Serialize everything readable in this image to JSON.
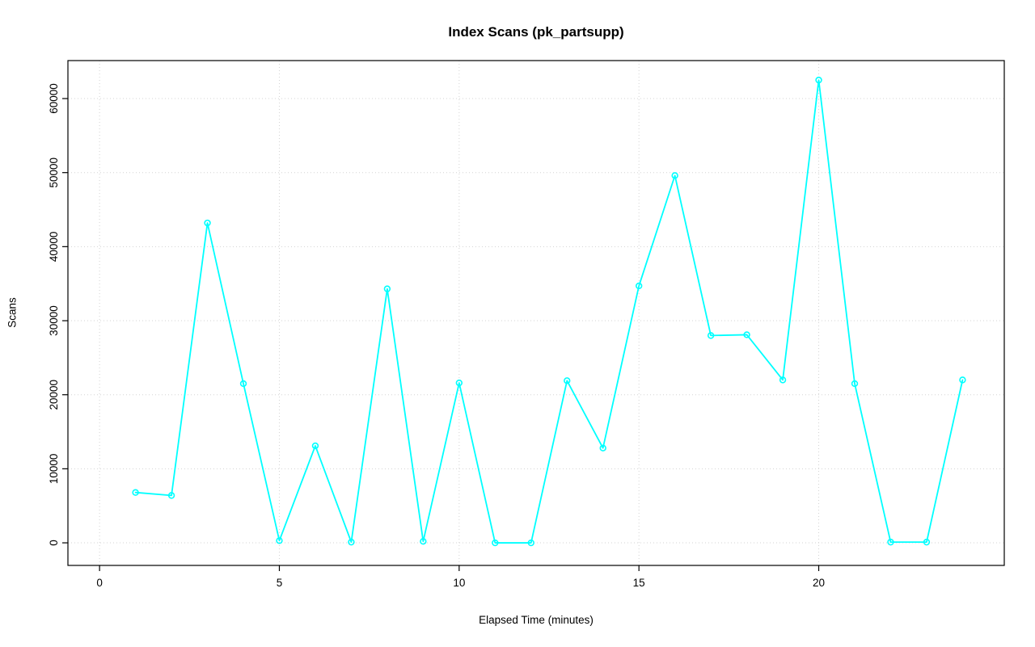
{
  "page": {
    "background": "#ffffff"
  },
  "chart_data": {
    "type": "line",
    "title": "Index Scans (pk_partsupp)",
    "xlabel": "Elapsed Time (minutes)",
    "ylabel": "Scans",
    "x": [
      1,
      2,
      3,
      4,
      5,
      6,
      7,
      8,
      9,
      10,
      11,
      12,
      13,
      14,
      15,
      16,
      17,
      18,
      19,
      20,
      21,
      22,
      23,
      24
    ],
    "series": [
      {
        "name": "pk_partsupp index scans",
        "marker": "open-circle",
        "color": "#00ffff",
        "values": [
          6800,
          6400,
          43200,
          21500,
          300,
          13100,
          100,
          34300,
          200,
          21600,
          0,
          0,
          21900,
          12800,
          34700,
          49600,
          28000,
          28100,
          22000,
          62500,
          21500,
          100,
          100,
          22000
        ]
      }
    ],
    "xticks": [
      0,
      5,
      10,
      15,
      20
    ],
    "yticks": [
      0,
      10000,
      20000,
      30000,
      40000,
      50000,
      60000
    ],
    "xlim": [
      -0.88,
      25.16
    ],
    "ylim": [
      -3050,
      65130
    ],
    "grid": true,
    "grid_style": "dotted",
    "grid_color": "#d3d3d3",
    "axis_color": "#000000",
    "legend": "none"
  }
}
